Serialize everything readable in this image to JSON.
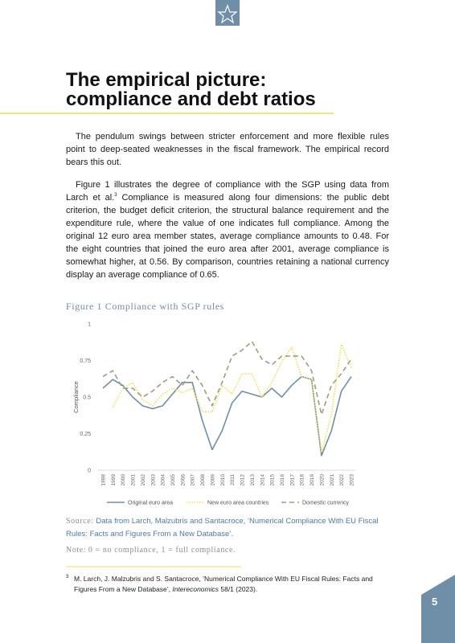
{
  "header": {
    "title_lines": [
      "The empirical picture:",
      "compliance and debt ratios"
    ]
  },
  "body": {
    "paragraph_1": "The pendulum swings between stricter enforcement and more flexible rules point to deep-seated weaknesses in the fiscal framework. The empirical record bears this out.",
    "paragraph_2": [
      "Figure 1 illustrates the degree of compliance with the SGP using data from Larch et al.",
      "3",
      " Compliance is measured along four dimensions: the public debt criterion, the budget deficit criterion, the structural balance requirement and the expenditure rule, where the value of one indicates full compliance. Among the original 12 euro area member states, average compliance amounts to 0.48. For the eight countries that joined the euro area after 2001, average compliance is somewhat higher, at 0.56. By comparison, countries retaining a national currency display an average compliance of 0.65."
    ]
  },
  "figure": {
    "caption": "Figure 1 Compliance with SGP rules",
    "source_label": "Source:",
    "source_text": "Data from Larch, Malzubris and Santacroce, ‘Numerical Compliance With EU Fiscal Rules: Facts and Figures From a New Database’.",
    "note_label": "Note:",
    "note_text": "0 = no compliance, 1 = full compliance."
  },
  "chart_data": {
    "type": "line",
    "y_label": "Compliance",
    "categories": [
      "1998",
      "1999",
      "2000",
      "2001",
      "2002",
      "2003",
      "2004",
      "2005",
      "2006",
      "2007",
      "2008",
      "2009",
      "2010",
      "2011",
      "2012",
      "2013",
      "2014",
      "2015",
      "2016",
      "2017",
      "2018",
      "2019",
      "2020",
      "2021",
      "2022",
      "2023"
    ],
    "series": [
      {
        "name": "Original euro area",
        "color": "#6f8fa8",
        "dash": "solid",
        "values": [
          0.56,
          0.62,
          0.58,
          0.5,
          0.44,
          0.42,
          0.44,
          0.52,
          0.6,
          0.6,
          0.34,
          0.14,
          0.27,
          0.46,
          0.54,
          0.52,
          0.5,
          0.56,
          0.5,
          0.58,
          0.64,
          0.62,
          0.1,
          0.27,
          0.54,
          0.64
        ]
      },
      {
        "name": "New euro area countries",
        "color": "#f2e14c",
        "dash": "dotted",
        "values": [
          null,
          0.43,
          0.56,
          0.6,
          0.48,
          0.44,
          0.52,
          0.56,
          0.53,
          0.56,
          0.4,
          0.4,
          0.58,
          0.52,
          0.66,
          0.66,
          0.5,
          0.6,
          0.74,
          0.84,
          0.64,
          0.62,
          0.12,
          0.38,
          0.86,
          0.7
        ]
      },
      {
        "name": "Domestic currency",
        "color": "#9a9f7f",
        "dash": "dashed",
        "values": [
          0.64,
          0.68,
          0.56,
          0.56,
          0.5,
          0.54,
          0.6,
          0.64,
          0.58,
          0.68,
          0.58,
          0.44,
          0.6,
          0.78,
          0.82,
          0.88,
          0.76,
          0.72,
          0.78,
          0.78,
          0.78,
          0.68,
          0.38,
          0.58,
          0.66,
          0.76
        ]
      }
    ],
    "ylim": [
      0,
      1
    ],
    "yticks": [
      0,
      0.25,
      0.5,
      0.75,
      1
    ],
    "grid": false,
    "legend": "bottom"
  },
  "footnote": {
    "marker": "3",
    "parts": [
      "M. Larch, J. Malzubris and S. Santacroce, ‘Numerical Compliance With EU Fiscal Rules: Facts and Figures From a New Database’, ",
      "Intereconomics",
      " 58/1 (2023)."
    ]
  },
  "page_number": "5"
}
